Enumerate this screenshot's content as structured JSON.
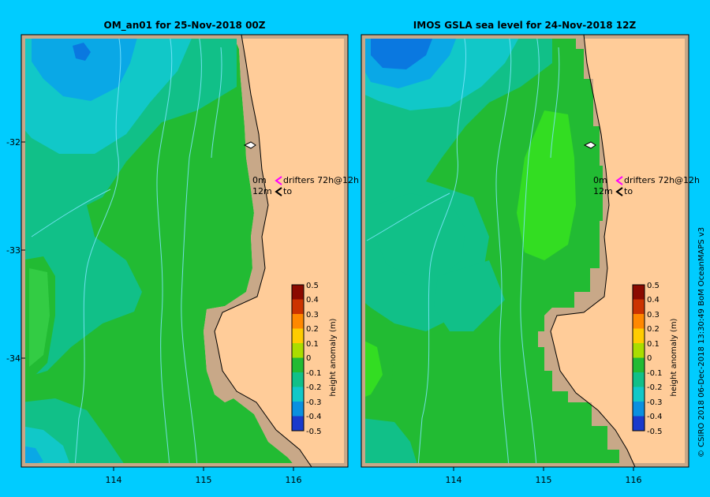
{
  "panels": [
    {
      "title": "OM_an01  for 25-Nov-2018 00Z"
    },
    {
      "title": "IMOS  GSLA sea level   for 24-Nov-2018 12Z"
    }
  ],
  "axes": {
    "x_ticks": [
      "114",
      "115",
      "116"
    ],
    "y_ticks": [
      "-32",
      "-33",
      "-34"
    ]
  },
  "legend": {
    "drifter_a": {
      "time": "0m",
      "label": "drifters 72h@12h",
      "color": "#ff00ff"
    },
    "drifter_b": {
      "time": "12m",
      "label": "to",
      "color": "#000000"
    }
  },
  "colorbar": {
    "label": "height anomaly (m)",
    "ticks": [
      "0.5",
      "0.4",
      "0.3",
      "0.2",
      "0.1",
      "0",
      "-0.1",
      "-0.2",
      "-0.3",
      "-0.4",
      "-0.5"
    ]
  },
  "credit": "© CSIRO 2018   06-Dec-2018 13:30:49 BoM OceanMAPS v3",
  "colors": {
    "background": "#00ccff",
    "land": "#ffcc99",
    "coast_band": "#c8a888",
    "ocean_base": "#22bb33",
    "bright_green": "#33dd22",
    "teal": "#11c088",
    "cyan": "#11c8c8",
    "light_blue": "#0aa8e6",
    "blue": "#0a78e0",
    "bathymetry": "#7fe6ff"
  }
}
